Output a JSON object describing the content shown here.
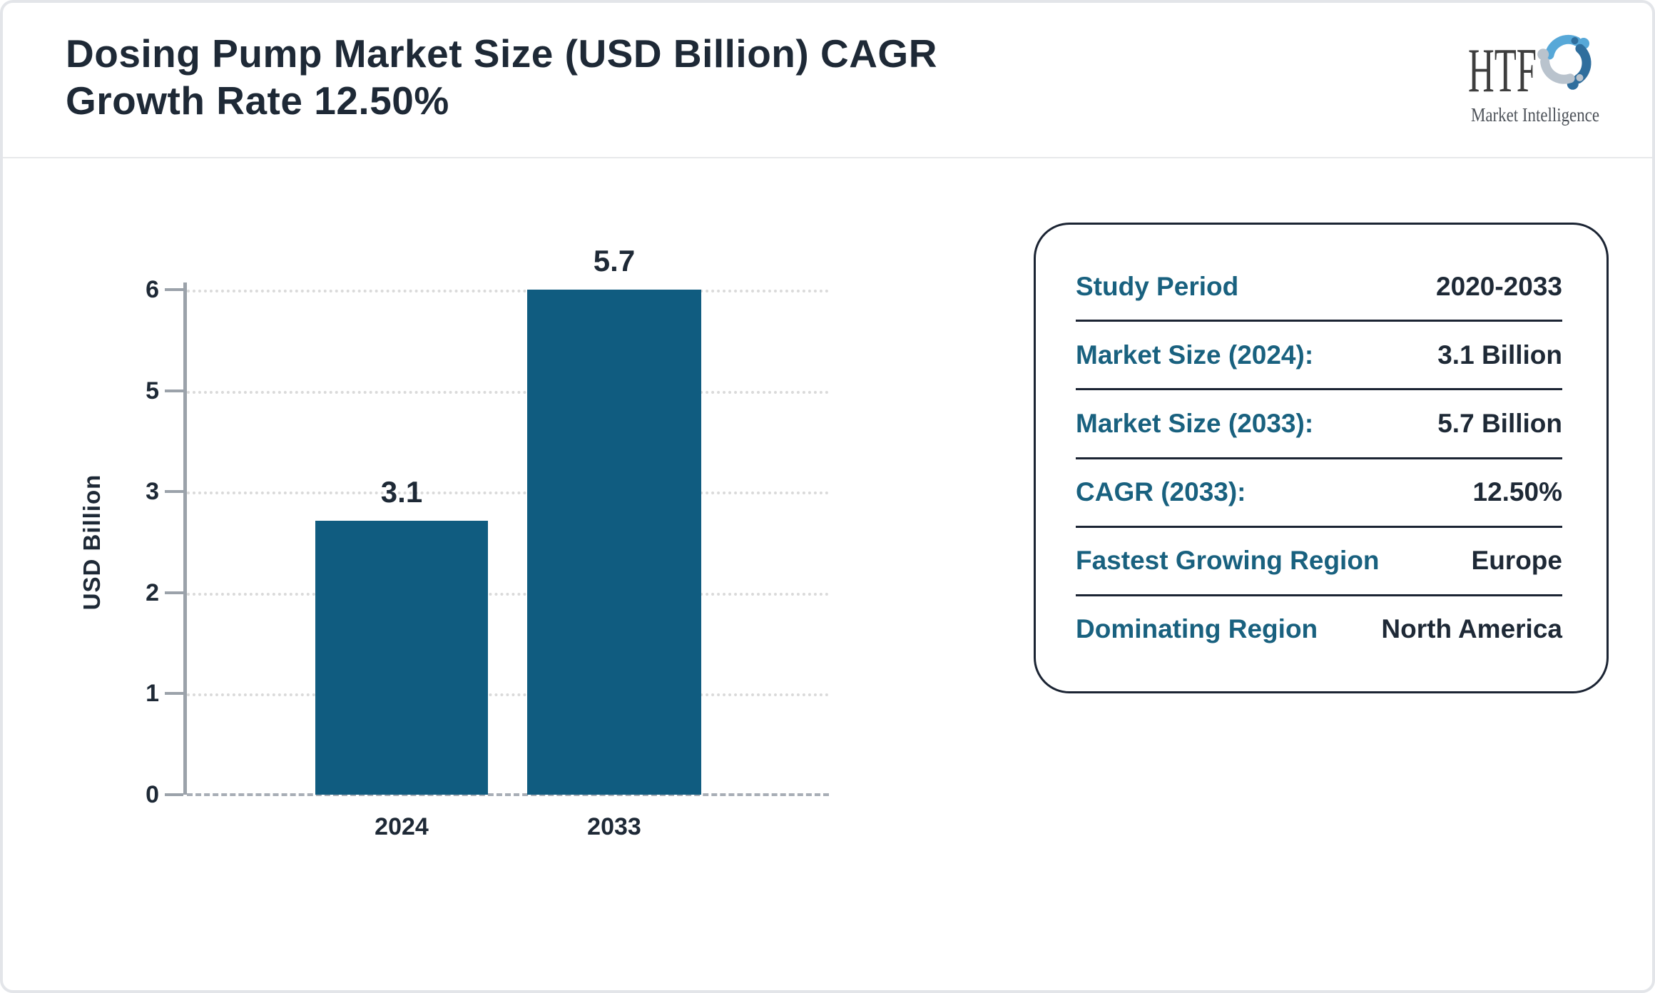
{
  "header": {
    "title_line1": "Dosing Pump Market Size (USD Billion) CAGR",
    "title_line2": "Growth Rate 12.50%"
  },
  "logo": {
    "brand": "HTF",
    "subtitle": "Market Intelligence",
    "colors": {
      "brand_text": "#3E3E3E",
      "subtitle_text": "#4E535A",
      "figure_light_blue": "#57A8D8",
      "figure_gray": "#B9C3CD",
      "figure_steel_blue": "#2F6E9D"
    }
  },
  "chart_data": {
    "type": "bar",
    "title": "Dosing Pump Market Size (USD Billion) CAGR Growth Rate 12.50%",
    "categories": [
      "2024",
      "2033"
    ],
    "values": [
      3.1,
      5.7
    ],
    "ylabel": "USD Billion",
    "xlabel": "",
    "ylim": [
      0,
      6
    ],
    "ytick_labels": [
      "6",
      "5",
      "3",
      "2",
      "1",
      "0"
    ],
    "grid": "dotted horizontal gridlines at each tick, dashed baseline at 0",
    "legend": "none",
    "bar_color": "#105C80",
    "bars": [
      {
        "category": "2024",
        "value": 3.1,
        "label": "3.1",
        "rendered_height_pct": 54.3
      },
      {
        "category": "2033",
        "value": 5.7,
        "label": "5.7",
        "rendered_height_pct": 100
      }
    ]
  },
  "panel": {
    "rows": [
      {
        "label": "Study Period",
        "value": "2020-2033"
      },
      {
        "label": "Market Size (2024):",
        "value": "3.1 Billion"
      },
      {
        "label": "Market Size (2033):",
        "value": "5.7 Billion"
      },
      {
        "label": "CAGR (2033):",
        "value": "12.50%"
      },
      {
        "label": "Fastest Growing Region",
        "value": "Europe"
      },
      {
        "label": "Dominating Region",
        "value": "North America"
      }
    ]
  },
  "colors": {
    "dark_text": "#1E2936",
    "bar_teal": "#105C80",
    "panel_label_teal": "#19617F",
    "panel_border": "#1B2433",
    "axis_gray": "#9BA2AA",
    "gridline_gray": "#DADADA",
    "frame_border": "#E3E5E9"
  }
}
